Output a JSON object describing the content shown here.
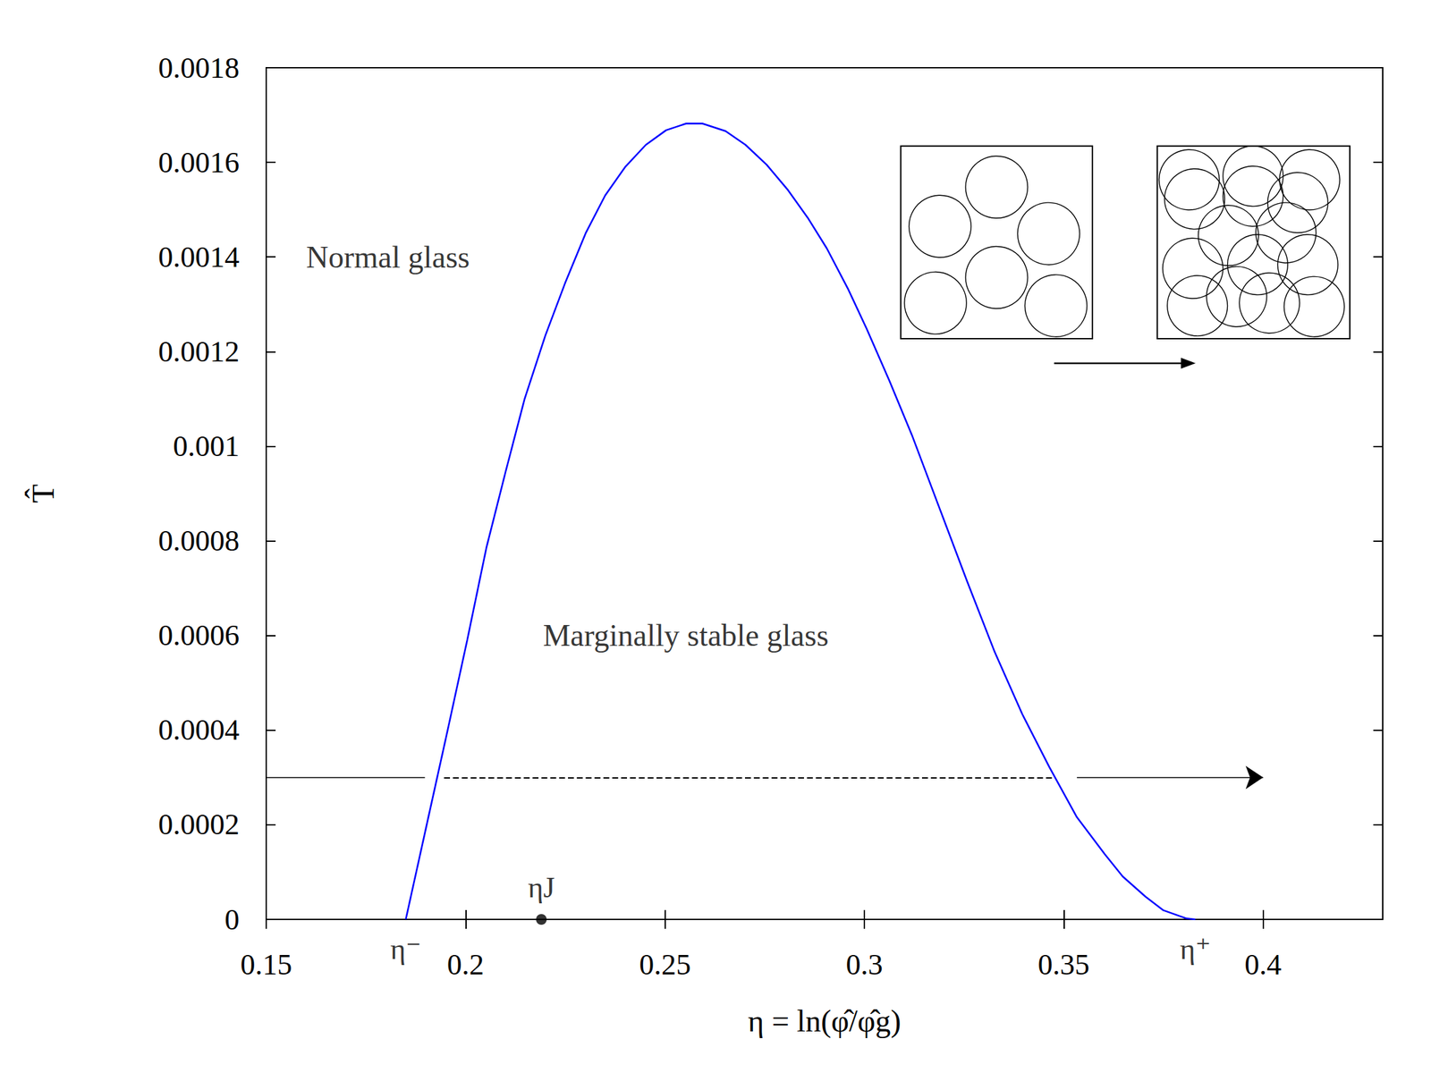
{
  "chart_data": {
    "type": "line",
    "x_label": "η = ln(φ̂/φ̂g)",
    "y_label": "T̂",
    "xlim": [
      0.15,
      0.43
    ],
    "xticks": [
      0.15,
      0.2,
      0.25,
      0.3,
      0.35,
      0.4
    ],
    "ylim": [
      0,
      0.0018
    ],
    "yticks": [
      0,
      0.0002,
      0.0004,
      0.0006,
      0.0008,
      0.001,
      0.0012,
      0.0014,
      0.0016,
      0.0018
    ],
    "grid": false,
    "series": [
      {
        "color": "#0000ff",
        "x": [
          0.185,
          0.1898,
          0.1955,
          0.2004,
          0.2052,
          0.21,
          0.2148,
          0.22,
          0.2251,
          0.2301,
          0.235,
          0.24,
          0.2452,
          0.2503,
          0.2553,
          0.2594,
          0.2652,
          0.2702,
          0.2755,
          0.2807,
          0.2858,
          0.2906,
          0.296,
          0.3006,
          0.3063,
          0.3121,
          0.3189,
          0.3258,
          0.3327,
          0.3396,
          0.3464,
          0.3533,
          0.3602,
          0.3648,
          0.3705,
          0.375,
          0.3808,
          0.383
        ],
        "values": [
          0,
          0.000183,
          0.0004,
          0.00059,
          0.000785,
          0.000945,
          0.0011,
          0.001234,
          0.001348,
          0.00145,
          0.00153,
          0.00159,
          0.001637,
          0.001668,
          0.001682,
          0.001682,
          0.001666,
          0.001637,
          0.001595,
          0.001543,
          0.001483,
          0.001418,
          0.001331,
          0.001248,
          0.001138,
          0.00102,
          0.000868,
          0.000714,
          0.000565,
          0.000434,
          0.000322,
          0.000216,
          0.000139,
          9.07e-05,
          4.82e-05,
          1.93e-05,
          2e-06,
          0
        ]
      }
    ],
    "annotations": [
      {
        "text": "Normal glass",
        "x": 0.16,
        "y": 0.0014
      },
      {
        "text": "Marginally stable glass",
        "x": 0.2194,
        "y": 0.0006
      }
    ],
    "axis_marks": [
      {
        "text": "η⁻",
        "x": 0.185
      },
      {
        "text": "η⁺",
        "x": 0.383
      }
    ],
    "points": [
      {
        "text": "ηJ",
        "x": 0.219,
        "y": 0,
        "marker": "circle"
      }
    ],
    "path": {
      "y": 0.0003,
      "segments": [
        {
          "from": 0.15,
          "to": 0.1898,
          "line_style": "solid"
        },
        {
          "from": 0.1946,
          "to": 0.3476,
          "line_style": "dashed"
        },
        {
          "from": 0.3533,
          "to": 0.4,
          "line_style": "solid",
          "marker": "arrow"
        }
      ]
    }
  }
}
